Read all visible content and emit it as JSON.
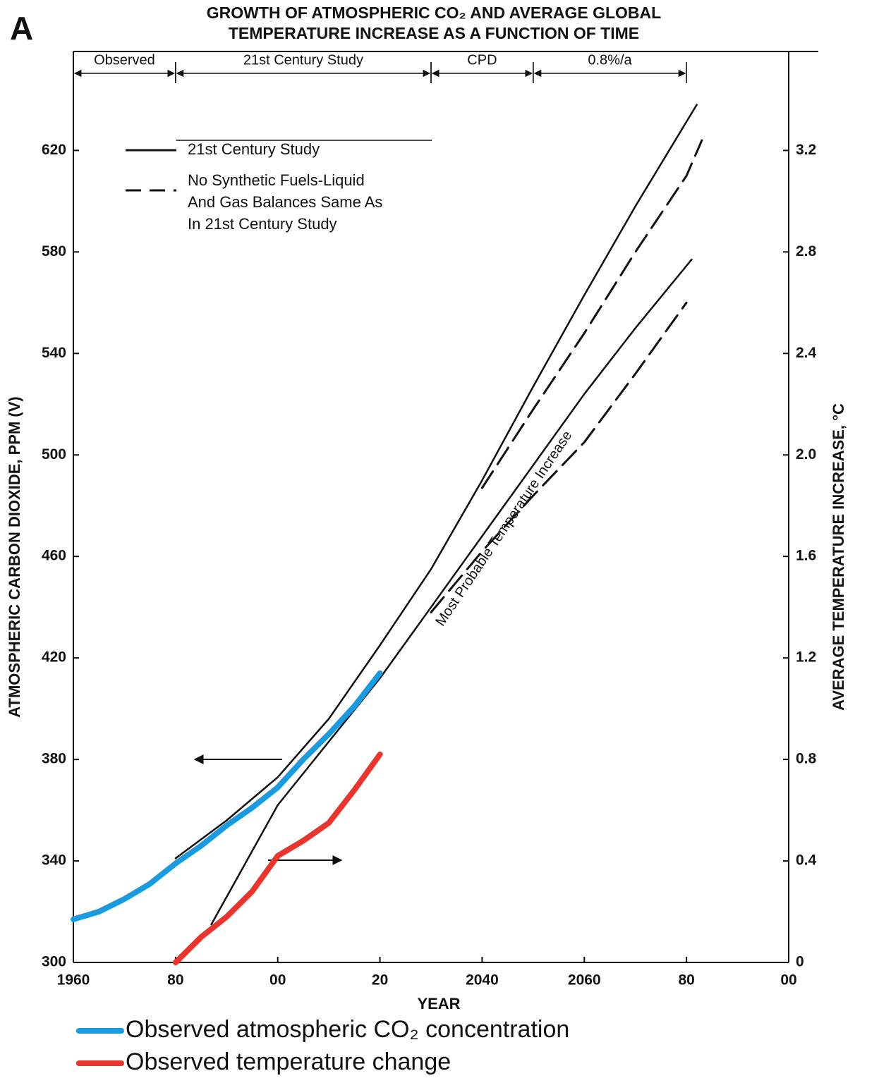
{
  "chart_data": {
    "type": "line",
    "panel_label": "A",
    "title": [
      "GROWTH OF ATMOSPHERIC CO₂ AND AVERAGE GLOBAL",
      "TEMPERATURE INCREASE AS A FUNCTION OF TIME"
    ],
    "x_label": "YEAR",
    "y_label": "ATMOSPHERIC CARBON DIOXIDE, PPM (V)",
    "y2_label": "AVERAGE TEMPERATURE INCREASE, °C",
    "xlim": [
      1960,
      2100
    ],
    "xticks": [
      {
        "value": 1960,
        "label": "1960"
      },
      {
        "value": 1980,
        "label": "80"
      },
      {
        "value": 2000,
        "label": "00"
      },
      {
        "value": 2020,
        "label": "20"
      },
      2040,
      2060,
      {
        "value": 2080,
        "label": "80"
      },
      {
        "value": 2100,
        "label": "00"
      }
    ],
    "ylim": [
      300,
      659
    ],
    "yticks": [
      300,
      340,
      380,
      420,
      460,
      500,
      540,
      580,
      620
    ],
    "y2lim": [
      0,
      3.59
    ],
    "y2ticks": [
      0,
      0.4,
      0.8,
      1.2,
      1.6,
      {
        "value": 2,
        "label": "2.0"
      },
      2.4,
      2.8,
      3.2
    ],
    "periods": [
      {
        "label": "Observed",
        "start": 1960,
        "end": 1980
      },
      {
        "label": "21st Century Study",
        "start": 1980,
        "end": 2030
      },
      {
        "label": "CPD",
        "start": 2030,
        "end": 2050
      },
      {
        "label": "0.8%/a",
        "start": 2050,
        "end": 2080
      }
    ],
    "line_styles": [
      {
        "label": "21st Century Study",
        "dash": "solid"
      },
      {
        "label": "No Synthetic Fuels-Liquid And Gas Balances Same As In 21st Century Study",
        "dash": "dashed"
      }
    ],
    "annotation": "Most Probable Temperature Increase",
    "series": [
      {
        "color": "#111111",
        "dash": "solid",
        "width": 2.5,
        "x": [
          1980,
          1990,
          2000,
          2010,
          2020,
          2030,
          2040,
          2050,
          2060,
          2070,
          2082
        ],
        "values": [
          341,
          356,
          373,
          396,
          425,
          455,
          490,
          527,
          563,
          598,
          638
        ]
      },
      {
        "color": "#111111",
        "dash": "dashed",
        "width": 3,
        "x": [
          2040,
          2050,
          2060,
          2070,
          2080,
          2083
        ],
        "values": [
          487,
          518,
          548,
          580,
          610,
          624
        ]
      },
      {
        "color": "#111111",
        "dash": "solid",
        "width": 2.5,
        "axis": "y2",
        "x": [
          1987,
          2000,
          2010,
          2020,
          2030,
          2040,
          2050,
          2060,
          2070,
          2081
        ],
        "values": [
          0.15,
          0.62,
          0.87,
          1.12,
          1.4,
          1.68,
          1.96,
          2.24,
          2.5,
          2.77
        ]
      },
      {
        "color": "#111111",
        "dash": "dashed",
        "width": 3,
        "axis": "y2",
        "x": [
          2030,
          2040,
          2050,
          2060,
          2070,
          2080
        ],
        "values": [
          1.38,
          1.62,
          1.84,
          2.05,
          2.32,
          2.6
        ]
      },
      {
        "name": "Observed atmospheric CO₂ concentration",
        "color": "#1a9be0",
        "dash": "solid",
        "width": 8,
        "x": [
          1960,
          1965,
          1970,
          1975,
          1980,
          1985,
          1990,
          1995,
          2000,
          2005,
          2010,
          2015,
          2020
        ],
        "values": [
          317,
          320,
          325,
          331,
          339,
          346,
          354,
          361,
          369,
          380,
          390,
          401,
          414
        ]
      },
      {
        "name": "Observed temperature change",
        "color": "#e8352e",
        "dash": "solid",
        "width": 8,
        "axis": "y2",
        "x": [
          1980,
          1985,
          1990,
          1995,
          2000,
          2005,
          2010,
          2015,
          2020
        ],
        "values": [
          0,
          0.1,
          0.18,
          0.28,
          0.42,
          0.48,
          0.55,
          0.68,
          0.82
        ]
      }
    ]
  }
}
